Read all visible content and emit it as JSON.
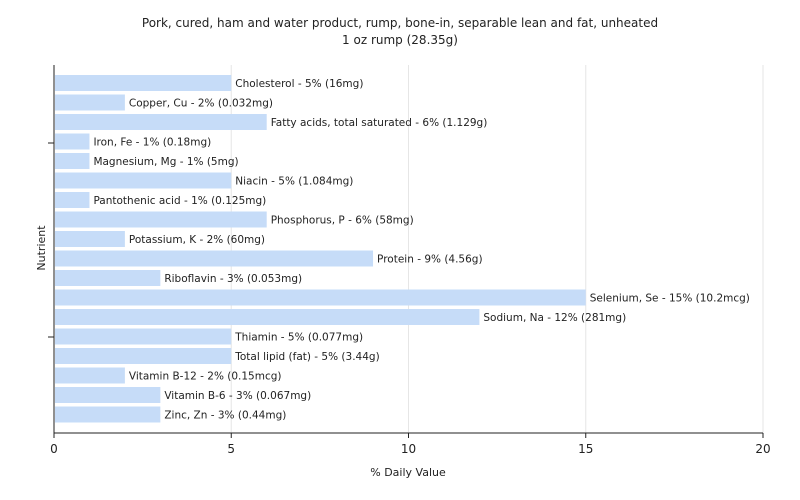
{
  "chart_data": {
    "type": "bar",
    "orientation": "horizontal",
    "title": "Pork, cured, ham and water product, rump, bone-in, separable lean and fat, unheated",
    "subtitle": "1 oz rump (28.35g)",
    "xlabel": "% Daily Value",
    "ylabel": "Nutrient",
    "xlim": [
      0,
      20
    ],
    "xticks": [
      "0",
      "5",
      "10",
      "15",
      "20"
    ],
    "grid": "vertical",
    "bar_color": "#c6dcf8",
    "categories": [
      "Cholesterol",
      "Copper, Cu",
      "Fatty acids, total saturated",
      "Iron, Fe",
      "Magnesium, Mg",
      "Niacin",
      "Pantothenic acid",
      "Phosphorus, P",
      "Potassium, K",
      "Protein",
      "Riboflavin",
      "Selenium, Se",
      "Sodium, Na",
      "Thiamin",
      "Total lipid (fat)",
      "Vitamin B-12",
      "Vitamin B-6",
      "Zinc, Zn"
    ],
    "values": [
      5,
      2,
      6,
      1,
      1,
      5,
      1,
      6,
      2,
      9,
      3,
      15,
      12,
      5,
      5,
      2,
      3,
      3
    ],
    "labels": [
      "Cholesterol - 5% (16mg)",
      "Copper, Cu - 2% (0.032mg)",
      "Fatty acids, total saturated - 6% (1.129g)",
      "Iron, Fe - 1% (0.18mg)",
      "Magnesium, Mg - 1% (5mg)",
      "Niacin - 5% (1.084mg)",
      "Pantothenic acid - 1% (0.125mg)",
      "Phosphorus, P - 6% (58mg)",
      "Potassium, K - 2% (60mg)",
      "Protein - 9% (4.56g)",
      "Riboflavin - 3% (0.053mg)",
      "Selenium, Se - 15% (10.2mcg)",
      "Sodium, Na - 12% (281mg)",
      "Thiamin - 5% (0.077mg)",
      "Total lipid (fat) - 5% (3.44g)",
      "Vitamin B-12 - 2% (0.15mcg)",
      "Vitamin B-6 - 3% (0.067mg)",
      "Zinc, Zn - 3% (0.44mg)"
    ]
  }
}
